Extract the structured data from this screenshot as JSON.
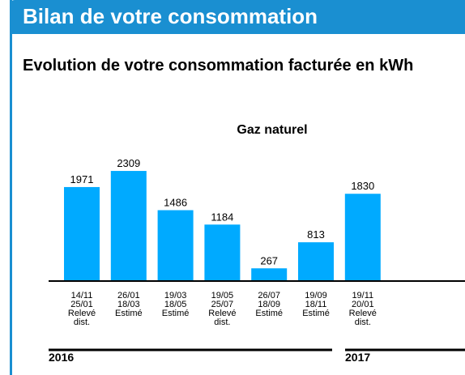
{
  "header": {
    "title": "Bilan de votre consommation"
  },
  "section": {
    "title": "Evolution de votre consommation facturée en kWh"
  },
  "colors": {
    "accent": "#1a8fd1",
    "bar": "#00aaff"
  },
  "chart_data": {
    "type": "bar",
    "title": "Gaz naturel",
    "ylabel": "",
    "xlabel": "",
    "ylim": [
      0,
      2500
    ],
    "grid": false,
    "categories": [
      {
        "lines": [
          "14/11",
          "25/01",
          "Relevé",
          "dist."
        ]
      },
      {
        "lines": [
          "26/01",
          "18/03",
          "Estimé"
        ]
      },
      {
        "lines": [
          "19/03",
          "18/05",
          "Estimé"
        ]
      },
      {
        "lines": [
          "19/05",
          "25/07",
          "Relevé",
          "dist."
        ]
      },
      {
        "lines": [
          "26/07",
          "18/09",
          "Estimé"
        ]
      },
      {
        "lines": [
          "19/09",
          "18/11",
          "Estimé"
        ]
      },
      {
        "lines": [
          "19/11",
          "20/01",
          "Relevé",
          "dist."
        ]
      }
    ],
    "values": [
      1971,
      2309,
      1486,
      1184,
      267,
      813,
      1830
    ],
    "years": [
      {
        "label": "2016",
        "first_index": 0,
        "last_index": 5
      },
      {
        "label": "2017",
        "first_index": 6,
        "last_index": 6
      }
    ]
  }
}
